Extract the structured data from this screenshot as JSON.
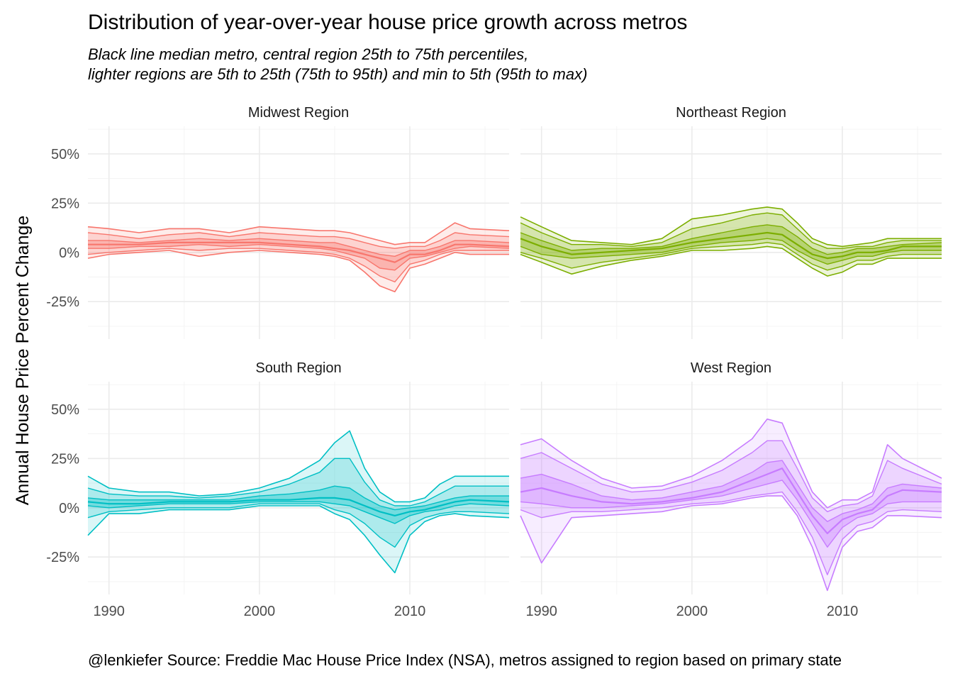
{
  "title": "Distribution of year-over-year house price growth across metros",
  "subtitle_lines": [
    "Black line median metro, central region 25th to 75th percentiles,",
    "lighter regions are 5th to 25th (75th to 95th) and min to 5th (95th to max)"
  ],
  "ylabel": "Annual House Price Percent Change",
  "caption": "@lenkiefer Source: Freddie Mac House Price Index (NSA), metros assigned to region based on primary state",
  "chart_data": {
    "type": "area",
    "facet_layout": "2x2",
    "x_ticks": [
      1990,
      2000,
      2010
    ],
    "x_tick_labels": [
      "1990",
      "2000",
      "2010"
    ],
    "xlim": [
      1988.6,
      2016.6
    ],
    "y_ticks": [
      -25,
      0,
      25,
      50
    ],
    "y_tick_labels": [
      "-25%",
      "0%",
      "25%",
      "50%"
    ],
    "ylim": [
      -44,
      64
    ],
    "grid": true,
    "legend": "none",
    "bands": [
      "min-5th",
      "5th-25th",
      "25th-75th",
      "75th-95th",
      "95th-max"
    ],
    "x": [
      1988.6,
      1990,
      1992,
      1994,
      1996,
      1998,
      2000,
      2002,
      2004,
      2005,
      2006,
      2007,
      2008,
      2009,
      2010,
      2011,
      2012,
      2013,
      2014,
      2016.6
    ],
    "panels": [
      {
        "title": "Midwest Region",
        "color": "#F8766D",
        "min": [
          -3,
          -1,
          0,
          1,
          -2,
          0,
          1,
          0,
          -1,
          -2,
          -4,
          -10,
          -17,
          -20,
          -8,
          -6,
          -3,
          0,
          -1,
          -1
        ],
        "p5": [
          -1,
          0,
          1,
          2,
          1,
          2,
          2,
          1,
          0,
          -1,
          -3,
          -7,
          -12,
          -15,
          -6,
          -4,
          -1,
          1,
          1,
          1
        ],
        "p25": [
          2,
          2,
          3,
          3,
          4,
          3,
          4,
          3,
          2,
          1,
          -1,
          -3,
          -8,
          -9,
          -3,
          -2,
          0,
          2,
          3,
          2
        ],
        "median": [
          4,
          4,
          4,
          5,
          5,
          5,
          5,
          4,
          3,
          2,
          1,
          -1,
          -3,
          -5,
          -1,
          -1,
          1,
          4,
          4,
          3
        ],
        "p75": [
          6,
          6,
          5,
          6,
          7,
          6,
          7,
          6,
          5,
          5,
          3,
          1,
          -1,
          -2,
          1,
          1,
          3,
          6,
          6,
          5
        ],
        "p95": [
          10,
          9,
          7,
          9,
          10,
          8,
          10,
          9,
          8,
          8,
          7,
          5,
          3,
          2,
          3,
          3,
          6,
          10,
          9,
          8
        ],
        "max": [
          13,
          12,
          10,
          12,
          12,
          10,
          13,
          12,
          11,
          11,
          10,
          8,
          6,
          4,
          5,
          5,
          10,
          15,
          12,
          11
        ]
      },
      {
        "title": "Northeast Region",
        "color": "#7CAE00",
        "min": [
          -1,
          -5,
          -11,
          -7,
          -4,
          -2,
          1,
          1,
          2,
          3,
          2,
          -3,
          -8,
          -12,
          -10,
          -6,
          -6,
          -3,
          -3,
          -3
        ],
        "p5": [
          0,
          -3,
          -8,
          -5,
          -3,
          -1,
          2,
          3,
          4,
          5,
          4,
          -1,
          -6,
          -9,
          -7,
          -4,
          -4,
          -2,
          -1,
          -1
        ],
        "p25": [
          3,
          -1,
          -3,
          -2,
          -1,
          0,
          3,
          5,
          6,
          7,
          6,
          1,
          -3,
          -6,
          -4,
          -2,
          -2,
          0,
          1,
          1
        ],
        "median": [
          7,
          3,
          -1,
          0,
          1,
          2,
          5,
          7,
          9,
          10,
          9,
          4,
          -1,
          -3,
          -2,
          0,
          0,
          1,
          3,
          3
        ],
        "p75": [
          10,
          6,
          1,
          2,
          2,
          3,
          7,
          10,
          13,
          14,
          13,
          8,
          2,
          -1,
          0,
          2,
          2,
          3,
          4,
          5
        ],
        "p95": [
          15,
          10,
          4,
          4,
          3,
          5,
          12,
          15,
          19,
          20,
          19,
          12,
          5,
          2,
          2,
          3,
          3,
          5,
          6,
          6
        ],
        "max": [
          18,
          13,
          6,
          5,
          4,
          7,
          17,
          19,
          22,
          23,
          22,
          15,
          7,
          4,
          3,
          4,
          5,
          7,
          7,
          7
        ]
      },
      {
        "title": "South Region",
        "color": "#00BFC4",
        "min": [
          -14,
          -3,
          -3,
          -1,
          -1,
          -1,
          1,
          1,
          1,
          -3,
          -6,
          -14,
          -24,
          -33,
          -14,
          -7,
          -4,
          -3,
          -4,
          -5
        ],
        "p5": [
          -5,
          -2,
          -1,
          0,
          0,
          0,
          2,
          2,
          2,
          -1,
          -3,
          -8,
          -15,
          -20,
          -9,
          -5,
          -3,
          -2,
          -2,
          -3
        ],
        "p25": [
          1,
          0,
          1,
          2,
          2,
          2,
          3,
          3,
          3,
          2,
          1,
          -2,
          -5,
          -8,
          -4,
          -2,
          -1,
          1,
          2,
          1
        ],
        "median": [
          3,
          2,
          2,
          3,
          3,
          3,
          4,
          4,
          5,
          5,
          4,
          1,
          -2,
          -4,
          -2,
          -1,
          1,
          3,
          4,
          3
        ],
        "p75": [
          5,
          4,
          4,
          4,
          4,
          4,
          6,
          7,
          9,
          11,
          10,
          5,
          1,
          -1,
          0,
          1,
          3,
          5,
          6,
          6
        ],
        "p95": [
          10,
          7,
          6,
          6,
          5,
          6,
          8,
          12,
          18,
          25,
          25,
          13,
          4,
          1,
          1,
          3,
          7,
          11,
          11,
          11
        ],
        "max": [
          16,
          10,
          8,
          8,
          6,
          7,
          10,
          15,
          24,
          33,
          39,
          20,
          8,
          3,
          3,
          5,
          12,
          16,
          16,
          16
        ]
      },
      {
        "title": "West Region",
        "color": "#C77CFF",
        "min": [
          -4,
          -28,
          -5,
          -4,
          -3,
          -2,
          1,
          2,
          5,
          6,
          6,
          -4,
          -20,
          -42,
          -20,
          -12,
          -10,
          -4,
          -4,
          -5
        ],
        "p5": [
          -1,
          -5,
          -2,
          -2,
          -1,
          0,
          2,
          3,
          6,
          7,
          8,
          -2,
          -15,
          -34,
          -16,
          -9,
          -7,
          -2,
          -1,
          -2
        ],
        "p25": [
          3,
          2,
          0,
          0,
          1,
          2,
          4,
          6,
          10,
          12,
          14,
          4,
          -8,
          -20,
          -10,
          -5,
          -3,
          2,
          3,
          3
        ],
        "median": [
          8,
          10,
          6,
          3,
          2,
          3,
          5,
          8,
          14,
          17,
          20,
          8,
          -4,
          -13,
          -6,
          -3,
          -1,
          6,
          9,
          8
        ],
        "p75": [
          15,
          17,
          12,
          6,
          4,
          5,
          8,
          11,
          18,
          23,
          24,
          12,
          0,
          -7,
          -3,
          -1,
          2,
          10,
          12,
          10
        ],
        "p95": [
          25,
          28,
          20,
          12,
          8,
          9,
          13,
          19,
          28,
          34,
          34,
          20,
          5,
          -2,
          1,
          2,
          6,
          24,
          20,
          12
        ],
        "max": [
          32,
          35,
          24,
          15,
          10,
          11,
          16,
          24,
          35,
          45,
          43,
          25,
          8,
          0,
          4,
          4,
          8,
          32,
          25,
          15
        ]
      }
    ]
  }
}
